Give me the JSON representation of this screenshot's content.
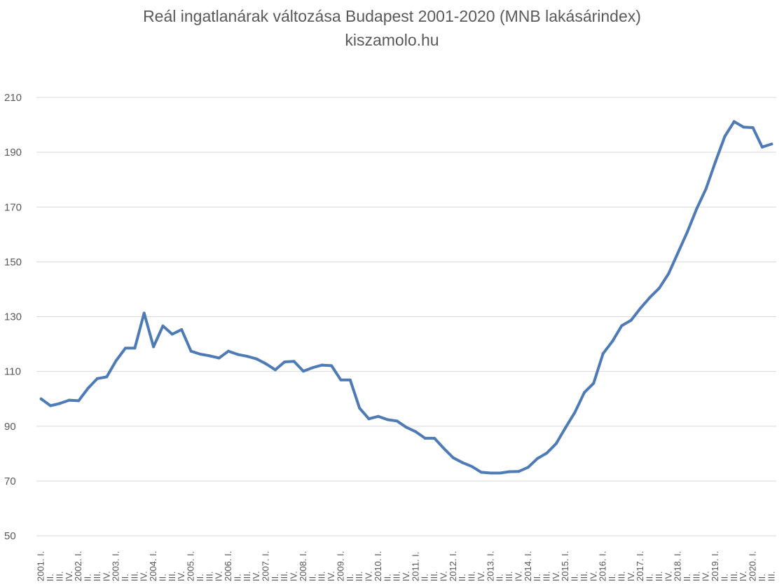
{
  "chart_data": {
    "type": "line",
    "title": "Reál ingatlanárak változása Budapest 2001-2020 (MNB lakásárindex)",
    "subtitle": "kiszamolo.hu",
    "ylim": [
      50,
      210
    ],
    "yticks": [
      50,
      70,
      90,
      110,
      130,
      150,
      170,
      190,
      210
    ],
    "grid": true,
    "legend": "none",
    "color": "#4e7bb5",
    "categories": [
      "2001. I.",
      "II.",
      "III.",
      "IV.",
      "2002. I.",
      "II.",
      "III.",
      "IV.",
      "2003. I.",
      "II.",
      "III.",
      "IV.",
      "2004. I.",
      "II.",
      "III.",
      "IV.",
      "2005. I.",
      "II.",
      "III.",
      "IV.",
      "2006. I.",
      "II.",
      "III.",
      "IV.",
      "2007. I.",
      "II.",
      "III.",
      "IV.",
      "2008. I.",
      "II.",
      "III.",
      "IV.",
      "2009. I.",
      "II.",
      "III.",
      "IV.",
      "2010. I.",
      "II.",
      "III.",
      "IV.",
      "2011. I.",
      "II.",
      "III.",
      "IV.",
      "2012. I.",
      "II.",
      "III.",
      "IV.",
      "2013. I.",
      "II.",
      "III.",
      "IV.",
      "2014. I.",
      "II.",
      "III.",
      "IV.",
      "2015. I.",
      "II.",
      "III.",
      "IV.",
      "2016. I.",
      "II.",
      "III.",
      "IV.",
      "2017. I.",
      "II.",
      "III.",
      "IV.",
      "2018. I.",
      "II.",
      "III.",
      "IV.",
      "2019. I.",
      "II.",
      "III.",
      "IV.",
      "2020. I.",
      "II.",
      "III."
    ],
    "series": [
      {
        "values": [
          100.0,
          97.5,
          98.3,
          99.5,
          99.3,
          103.8,
          107.4,
          108.0,
          113.9,
          118.5,
          118.5,
          131.3,
          119.0,
          126.6,
          123.6,
          125.3,
          117.4,
          116.3,
          115.7,
          114.9,
          117.4,
          116.2,
          115.5,
          114.6,
          112.8,
          110.6,
          113.5,
          113.7,
          110.1,
          111.4,
          112.3,
          112.1,
          106.9,
          106.9,
          96.6,
          92.7,
          93.6,
          92.4,
          91.9,
          89.6,
          88.0,
          85.6,
          85.6,
          81.9,
          78.5,
          76.7,
          75.3,
          73.2,
          72.9,
          72.9,
          73.4,
          73.5,
          75.0,
          78.2,
          80.2,
          83.7,
          89.5,
          95.1,
          102.3,
          105.7,
          116.5,
          121.0,
          126.7,
          128.7,
          133.1,
          137.0,
          140.4,
          145.7,
          153.3,
          160.9,
          169.4,
          176.7,
          186.5,
          195.8,
          201.2,
          199.2,
          199.0,
          191.9,
          193.0
        ]
      }
    ]
  }
}
